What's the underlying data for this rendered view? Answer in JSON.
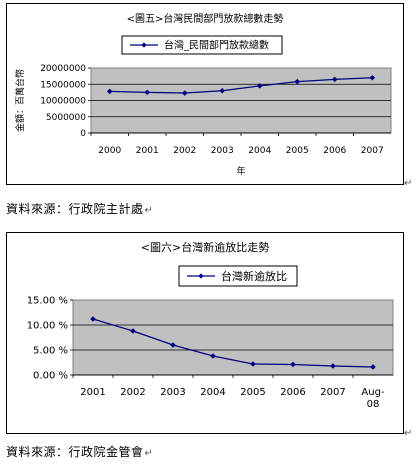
{
  "chart_data": [
    {
      "type": "line",
      "title": "<圖五>台灣民間部門放款總數走勢",
      "legend": "台灣_民間部門放款總數",
      "legend_position": "top",
      "xlabel": "年",
      "ylabel": "金額：百萬台幣",
      "x": [
        "2000",
        "2001",
        "2002",
        "2003",
        "2004",
        "2005",
        "2006",
        "2007"
      ],
      "y_ticks": [
        "0",
        "5000000",
        "10000000",
        "15000000",
        "20000000"
      ],
      "ylim": [
        0,
        20000000
      ],
      "series": [
        {
          "name": "台灣_民間部門放款總數",
          "values": [
            12800000,
            12500000,
            12300000,
            13000000,
            14500000,
            15800000,
            16500000,
            17000000
          ]
        }
      ],
      "grid": true,
      "plot_background": "#c0c0c0",
      "line_color": "#000080"
    },
    {
      "type": "line",
      "title": "<圖六>台灣新逾放比走勢",
      "legend": "台灣新逾放比",
      "legend_position": "top",
      "x": [
        "2001",
        "2002",
        "2003",
        "2004",
        "2005",
        "2006",
        "2007",
        "Aug-08"
      ],
      "y_ticks": [
        "0.00 %",
        "5.00 %",
        "10.00 %",
        "15.00 %"
      ],
      "ylim": [
        0,
        15
      ],
      "series": [
        {
          "name": "台灣新逾放比",
          "values": [
            11.2,
            8.8,
            6.0,
            3.8,
            2.2,
            2.1,
            1.8,
            1.6
          ]
        }
      ],
      "grid": true,
      "plot_background": "#c0c0c0",
      "line_color": "#000080"
    }
  ],
  "sources": {
    "chart1": "資料來源：行政院主計處",
    "chart2": "資料來源：行政院金管會"
  },
  "para_mark": "↵"
}
